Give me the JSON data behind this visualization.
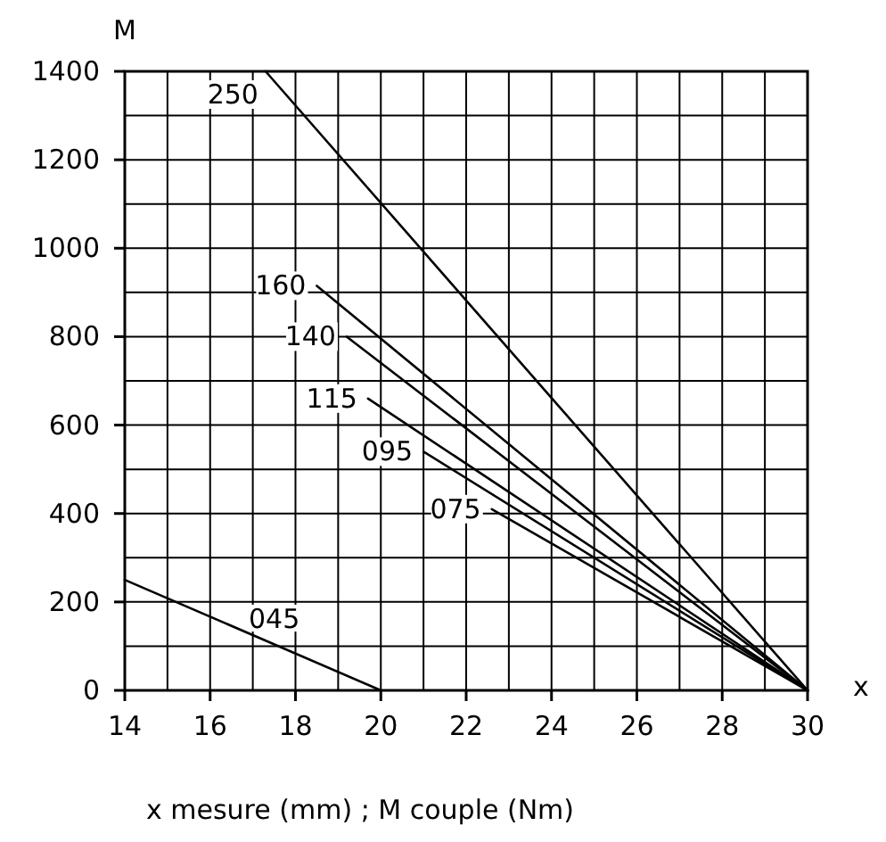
{
  "chart_data": {
    "type": "line",
    "xlabel": "x",
    "ylabel": "M",
    "annotations": [
      "x mesure (mm) ; M couple (Nm)"
    ],
    "xlim": [
      14,
      30
    ],
    "ylim": [
      0,
      1400
    ],
    "xticks": [
      14,
      {
        "value": 15,
        "label": null
      },
      16,
      {
        "value": 17,
        "label": null
      },
      18,
      {
        "value": 19,
        "label": null
      },
      20,
      {
        "value": 21,
        "label": null
      },
      22,
      {
        "value": 23,
        "label": null
      },
      24,
      {
        "value": 25,
        "label": null
      },
      26,
      {
        "value": 27,
        "label": null
      },
      28,
      {
        "value": 29,
        "label": null
      },
      30
    ],
    "yticks": [
      0,
      {
        "value": 100,
        "label": null
      },
      200,
      {
        "value": 300,
        "label": null
      },
      400,
      {
        "value": 500,
        "label": null
      },
      600,
      {
        "value": 700,
        "label": null
      },
      800,
      {
        "value": 900,
        "label": null
      },
      1000,
      {
        "value": 1100,
        "label": null
      },
      1200,
      {
        "value": 1300,
        "label": null
      },
      1400
    ],
    "grid": true,
    "marker": "none",
    "line_style": "solid",
    "series": [
      {
        "name": "250",
        "color": "#000000",
        "x": [
          17.3,
          30
        ],
        "values": [
          1400,
          0
        ]
      },
      {
        "name": "160",
        "color": "#000000",
        "x": [
          18.5,
          30
        ],
        "values": [
          915,
          0
        ]
      },
      {
        "name": "140",
        "color": "#000000",
        "x": [
          19.2,
          30
        ],
        "values": [
          800,
          0
        ]
      },
      {
        "name": "115",
        "color": "#000000",
        "x": [
          19.7,
          30
        ],
        "values": [
          660,
          0
        ]
      },
      {
        "name": "095",
        "color": "#000000",
        "x": [
          21,
          30
        ],
        "values": [
          540,
          0
        ]
      },
      {
        "name": "075",
        "color": "#000000",
        "x": [
          22.6,
          30
        ],
        "values": [
          410,
          0
        ]
      },
      {
        "name": "045",
        "color": "#000000",
        "x": [
          14,
          20
        ],
        "values": [
          250,
          0
        ]
      }
    ]
  }
}
